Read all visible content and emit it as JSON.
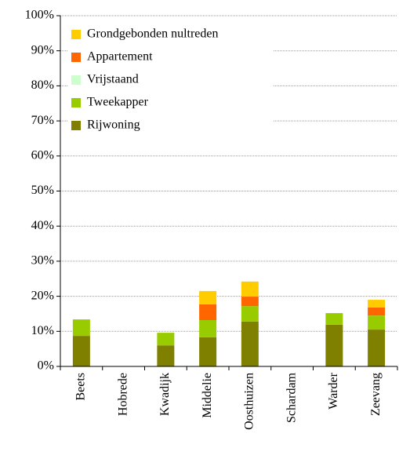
{
  "chart_data": {
    "type": "stacked_bar",
    "categories": [
      "Beets",
      "Hobrede",
      "Kwadijk",
      "Middelie",
      "Oosthuizen",
      "Schardam",
      "Warder",
      "Zeevang"
    ],
    "series": [
      {
        "name": "Rijwoning",
        "color": "#808000",
        "values": [
          8.7,
          0,
          6.0,
          8.3,
          12.8,
          0,
          11.9,
          10.5
        ]
      },
      {
        "name": "Tweekapper",
        "color": "#99cc00",
        "values": [
          4.7,
          0,
          3.6,
          4.9,
          4.4,
          0,
          3.3,
          4.0
        ]
      },
      {
        "name": "Vrijstaand",
        "color": "#ccffcc",
        "values": [
          0,
          0,
          0,
          0,
          0,
          0,
          0,
          0
        ]
      },
      {
        "name": "Appartement",
        "color": "#ff6600",
        "values": [
          0,
          0,
          0,
          4.5,
          2.7,
          0,
          0,
          2.3
        ]
      },
      {
        "name": "Grondgebonden nultreden",
        "color": "#ffcc00",
        "values": [
          0,
          0,
          0,
          3.8,
          4.3,
          0,
          0,
          2.2
        ]
      }
    ],
    "ylim": [
      0,
      100
    ],
    "yticks": [
      {
        "value": 0,
        "label": "0%"
      },
      {
        "value": 10,
        "label": "10%"
      },
      {
        "value": 20,
        "label": "20%"
      },
      {
        "value": 30,
        "label": "30%"
      },
      {
        "value": 40,
        "label": "40%"
      },
      {
        "value": 50,
        "label": "50%"
      },
      {
        "value": 60,
        "label": "60%"
      },
      {
        "value": 70,
        "label": "70%"
      },
      {
        "value": 80,
        "label": "80%"
      },
      {
        "value": 90,
        "label": "90%"
      },
      {
        "value": 100,
        "label": "100%"
      }
    ],
    "grid": true,
    "legend": "upper left"
  }
}
